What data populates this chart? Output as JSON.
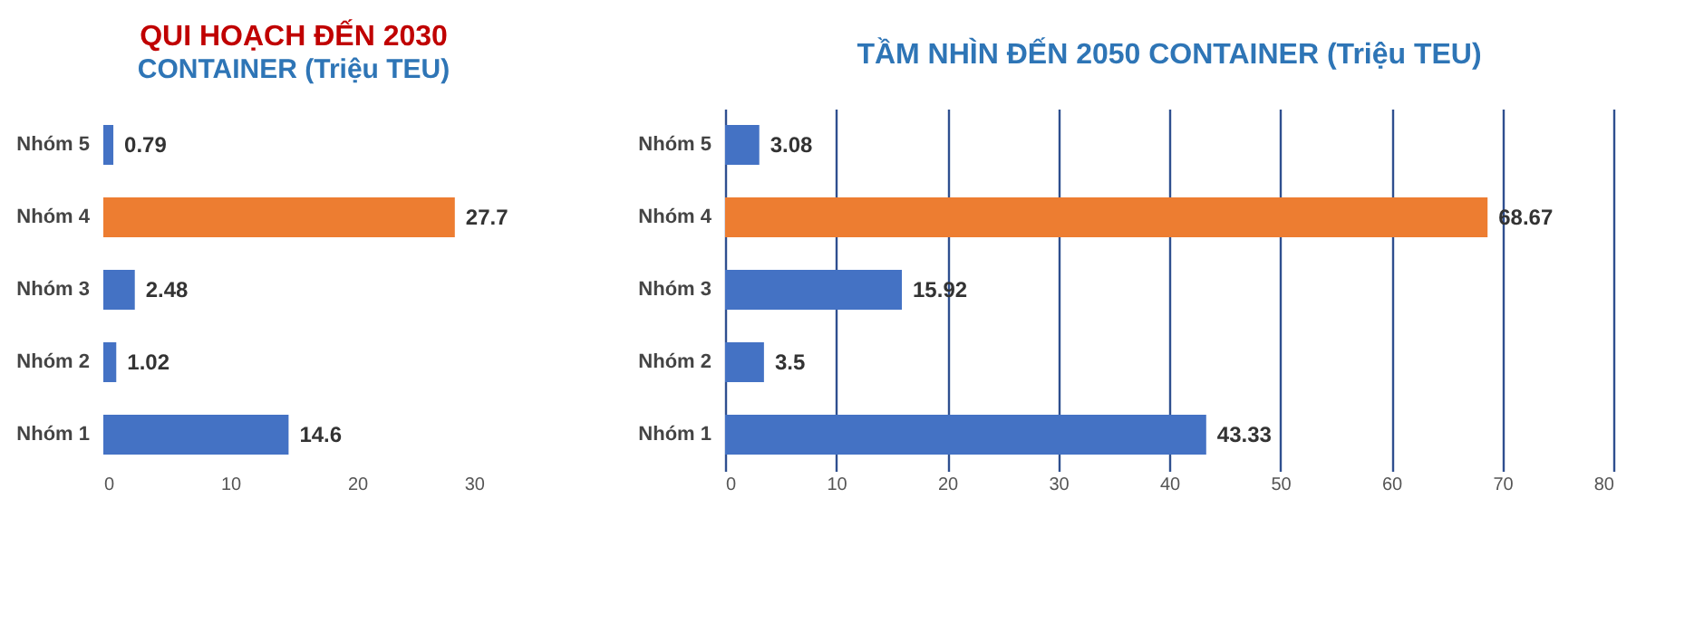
{
  "chart_data": [
    {
      "type": "bar",
      "orientation": "horizontal",
      "title": "QUI HOẠCH ĐẾN 2030",
      "subtitle": "CONTAINER (Triệu TEU)",
      "categories": [
        "Nhóm 5",
        "Nhóm 4",
        "Nhóm 3",
        "Nhóm 2",
        "Nhóm 1"
      ],
      "values": [
        0.79,
        27.7,
        2.48,
        1.02,
        14.6
      ],
      "colors": [
        "#4472c4",
        "#ed7d31",
        "#4472c4",
        "#4472c4",
        "#4472c4"
      ],
      "xlim": [
        0,
        30
      ],
      "xticks": [
        0,
        10,
        20,
        30
      ],
      "grid": false,
      "data_labels": true
    },
    {
      "type": "bar",
      "orientation": "horizontal",
      "title": "TẦM NHÌN ĐẾN 2050 CONTAINER (Triệu TEU)",
      "categories": [
        "Nhóm 5",
        "Nhóm 4",
        "Nhóm 3",
        "Nhóm 2",
        "Nhóm 1"
      ],
      "values": [
        3.08,
        68.67,
        15.92,
        3.5,
        43.33
      ],
      "colors": [
        "#4472c4",
        "#ed7d31",
        "#4472c4",
        "#4472c4",
        "#4472c4"
      ],
      "xlim": [
        0,
        80
      ],
      "xticks": [
        0,
        10,
        20,
        30,
        40,
        50,
        60,
        70,
        80
      ],
      "grid": "x",
      "data_labels": true
    }
  ]
}
